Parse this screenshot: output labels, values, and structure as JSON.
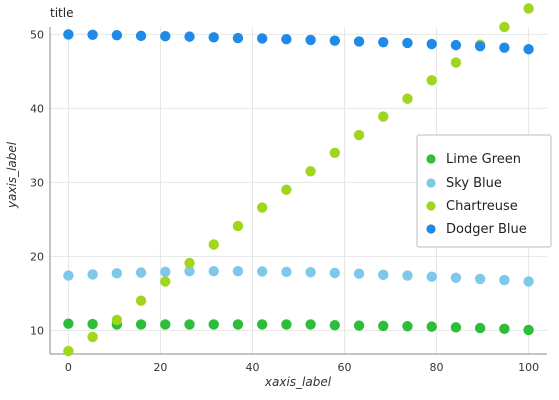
{
  "chart_data": {
    "type": "scatter",
    "title": "title",
    "xlabel": "xaxis_label",
    "ylabel": "yaxis_label",
    "xlim": [
      -4,
      104
    ],
    "ylim": [
      6.8,
      51
    ],
    "xticks": [
      0,
      20,
      40,
      60,
      80,
      100
    ],
    "yticks": [
      10,
      20,
      30,
      40,
      50
    ],
    "grid": true,
    "legend": "right",
    "series": [
      {
        "name": "Lime Green",
        "color": "#2ebd3a",
        "x": [
          0,
          5.26,
          10.53,
          15.79,
          21.05,
          26.32,
          31.58,
          36.84,
          42.11,
          47.37,
          52.63,
          57.89,
          63.16,
          68.42,
          73.68,
          78.95,
          84.21,
          89.47,
          94.74,
          100
        ],
        "y": [
          10.9,
          10.85,
          10.8,
          10.8,
          10.8,
          10.8,
          10.8,
          10.8,
          10.8,
          10.8,
          10.8,
          10.7,
          10.65,
          10.6,
          10.55,
          10.5,
          10.4,
          10.3,
          10.2,
          10.05
        ]
      },
      {
        "name": "Sky Blue",
        "color": "#7ec8ea",
        "x": [
          0,
          5.26,
          10.53,
          15.79,
          21.05,
          26.32,
          31.58,
          36.84,
          42.11,
          47.37,
          52.63,
          57.89,
          63.16,
          68.42,
          73.68,
          78.95,
          84.21,
          89.47,
          94.74,
          100
        ],
        "y": [
          17.4,
          17.55,
          17.7,
          17.8,
          17.9,
          18.0,
          18.0,
          18.0,
          17.95,
          17.9,
          17.85,
          17.75,
          17.65,
          17.5,
          17.4,
          17.25,
          17.1,
          16.95,
          16.8,
          16.6
        ]
      },
      {
        "name": "Chartreuse",
        "color": "#a0d61e",
        "x": [
          0,
          5.26,
          10.53,
          15.79,
          21.05,
          26.32,
          31.58,
          36.84,
          42.11,
          47.37,
          52.63,
          57.89,
          63.16,
          68.42,
          73.68,
          78.95,
          84.21,
          89.47,
          94.74,
          100
        ],
        "y": [
          7.2,
          9.1,
          11.4,
          14.0,
          16.6,
          19.1,
          21.6,
          24.1,
          26.6,
          29.0,
          31.5,
          34.0,
          36.4,
          38.9,
          41.3,
          43.8,
          46.2,
          48.6,
          51.0,
          53.5
        ]
      },
      {
        "name": "Dodger Blue",
        "color": "#1f8be6",
        "x": [
          0,
          5.26,
          10.53,
          15.79,
          21.05,
          26.32,
          31.58,
          36.84,
          42.11,
          47.37,
          52.63,
          57.89,
          63.16,
          68.42,
          73.68,
          78.95,
          84.21,
          89.47,
          94.74,
          100
        ],
        "y": [
          50.0,
          49.95,
          49.9,
          49.8,
          49.75,
          49.7,
          49.6,
          49.5,
          49.45,
          49.35,
          49.25,
          49.15,
          49.05,
          48.95,
          48.85,
          48.7,
          48.55,
          48.4,
          48.2,
          48.0
        ]
      }
    ]
  },
  "legend": {
    "items": [
      {
        "label": "Lime Green",
        "color": "#2ebd3a"
      },
      {
        "label": "Sky Blue",
        "color": "#7ec8ea"
      },
      {
        "label": "Chartreuse",
        "color": "#a0d61e"
      },
      {
        "label": "Dodger Blue",
        "color": "#1f8be6"
      }
    ]
  }
}
